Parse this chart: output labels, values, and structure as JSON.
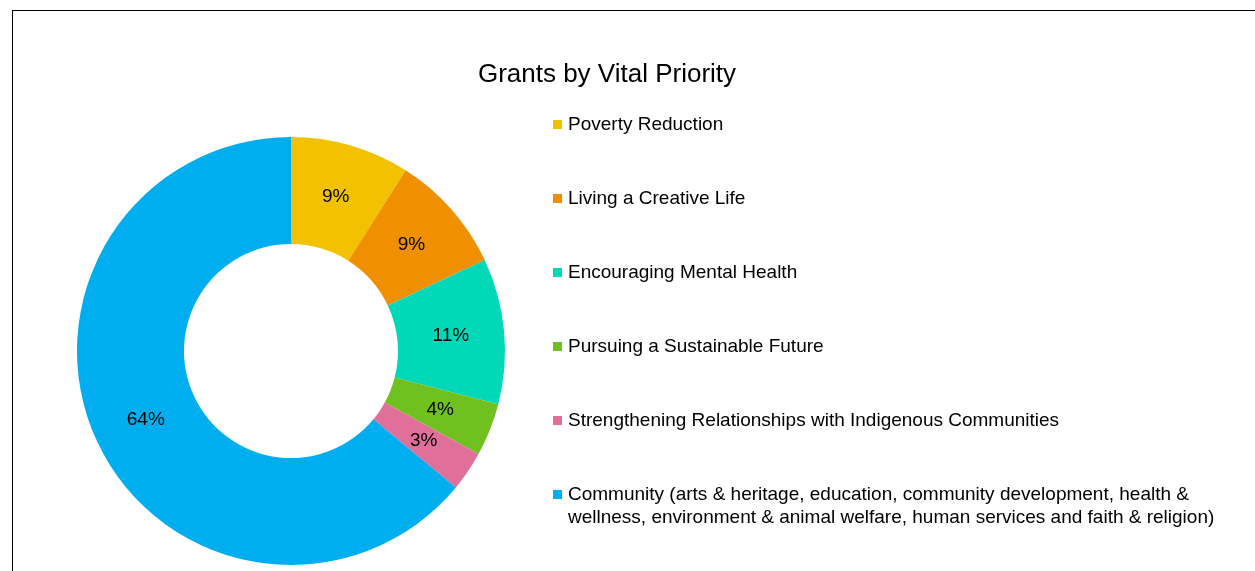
{
  "chart_data": {
    "type": "donut",
    "title": "Grants by Vital Priority",
    "categories": [
      "Poverty Reduction",
      "Living a Creative Life",
      "Encouraging Mental Health",
      "Pursuing a Sustainable Future",
      "Strengthening Relationships with Indigenous Communities",
      "Community (arts & heritage, education, community development, health & wellness, environment & animal welfare, human services and faith & religion)"
    ],
    "values": [
      9,
      9,
      11,
      4,
      3,
      64
    ],
    "colors": [
      "#f2c200",
      "#f09000",
      "#00d8b8",
      "#70c020",
      "#e0709a",
      "#00aef0"
    ],
    "value_labels": [
      "9%",
      "9%",
      "11%",
      "4%",
      "3%",
      "64%"
    ],
    "legend": "right"
  }
}
